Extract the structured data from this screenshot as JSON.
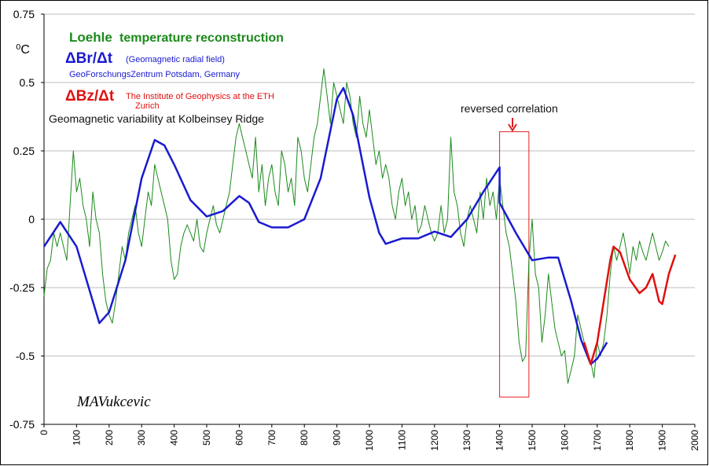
{
  "chart_data": {
    "type": "line",
    "unit_label": "⁰C",
    "legend_notes": {
      "loehle": "temperature reconstruction",
      "br_desc": "(Geomagnetic radial field)",
      "br_source": "GeoForschungsZentrum Potsdam, Germany",
      "bz_source_1": "The Institute of Geophysics at the ETH",
      "bz_source_2": "Zurich",
      "site": "Geomagnetic variability at Kolbeinsey Ridge"
    },
    "annotation": "reversed correlation",
    "signature": "MAVukcevic",
    "highlight": {
      "xlim": [
        1400,
        1490
      ],
      "ylim": [
        -0.65,
        0.32
      ],
      "color": "#e02020"
    },
    "xlim": [
      0,
      2000
    ],
    "ylim": [
      -0.75,
      0.75
    ],
    "xticks": [
      0,
      100,
      200,
      300,
      400,
      500,
      600,
      700,
      800,
      900,
      1000,
      1100,
      1200,
      1300,
      1400,
      1500,
      1600,
      1700,
      1800,
      1900,
      2000
    ],
    "yticks": [
      0.75,
      0.5,
      0.25,
      0,
      -0.25,
      -0.5,
      -0.75
    ],
    "grid": true,
    "series": [
      {
        "name": "Loehle",
        "color": "#1a8a1a",
        "width": 1,
        "x": [
          0,
          10,
          20,
          30,
          40,
          50,
          60,
          70,
          80,
          90,
          100,
          110,
          120,
          130,
          140,
          150,
          160,
          170,
          180,
          190,
          200,
          210,
          220,
          230,
          240,
          250,
          260,
          270,
          280,
          290,
          300,
          310,
          320,
          330,
          340,
          350,
          360,
          370,
          380,
          390,
          400,
          410,
          420,
          430,
          440,
          450,
          460,
          470,
          480,
          490,
          500,
          510,
          520,
          530,
          540,
          550,
          560,
          570,
          580,
          590,
          600,
          610,
          620,
          630,
          640,
          650,
          660,
          670,
          680,
          690,
          700,
          710,
          720,
          730,
          740,
          750,
          760,
          770,
          780,
          790,
          800,
          810,
          820,
          830,
          840,
          850,
          860,
          870,
          880,
          890,
          900,
          910,
          920,
          930,
          940,
          950,
          960,
          970,
          980,
          990,
          1000,
          1010,
          1020,
          1030,
          1040,
          1050,
          1060,
          1070,
          1080,
          1090,
          1100,
          1110,
          1120,
          1130,
          1140,
          1150,
          1160,
          1170,
          1180,
          1190,
          1200,
          1210,
          1220,
          1230,
          1240,
          1250,
          1260,
          1270,
          1280,
          1290,
          1300,
          1310,
          1320,
          1330,
          1340,
          1350,
          1360,
          1370,
          1380,
          1390,
          1400,
          1410,
          1420,
          1430,
          1440,
          1450,
          1460,
          1470,
          1480,
          1490,
          1500,
          1510,
          1520,
          1530,
          1540,
          1550,
          1560,
          1570,
          1580,
          1590,
          1600,
          1610,
          1620,
          1630,
          1640,
          1650,
          1660,
          1670,
          1680,
          1690,
          1700,
          1710,
          1720,
          1730,
          1740,
          1750,
          1760,
          1770,
          1780,
          1790,
          1800,
          1810,
          1820,
          1830,
          1840,
          1850,
          1860,
          1870,
          1880,
          1890,
          1900,
          1910,
          1920
        ],
        "values": [
          -0.28,
          -0.18,
          -0.15,
          -0.05,
          -0.1,
          -0.05,
          -0.1,
          -0.15,
          0.05,
          0.25,
          0.1,
          0.15,
          0.05,
          0.0,
          -0.1,
          0.1,
          0.0,
          -0.05,
          -0.2,
          -0.3,
          -0.35,
          -0.38,
          -0.3,
          -0.2,
          -0.1,
          -0.15,
          -0.05,
          0.0,
          0.05,
          -0.05,
          -0.1,
          0.0,
          0.1,
          0.05,
          0.2,
          0.15,
          0.1,
          0.05,
          0.0,
          -0.15,
          -0.22,
          -0.2,
          -0.1,
          -0.05,
          -0.02,
          -0.05,
          -0.08,
          0.0,
          -0.1,
          -0.12,
          -0.05,
          0.0,
          0.05,
          -0.02,
          -0.05,
          0.0,
          0.05,
          0.1,
          0.2,
          0.3,
          0.35,
          0.3,
          0.25,
          0.2,
          0.15,
          0.3,
          0.1,
          0.2,
          0.05,
          0.15,
          0.2,
          0.1,
          0.05,
          0.25,
          0.2,
          0.1,
          0.15,
          0.05,
          0.3,
          0.25,
          0.15,
          0.1,
          0.2,
          0.3,
          0.35,
          0.45,
          0.55,
          0.45,
          0.35,
          0.5,
          0.45,
          0.4,
          0.35,
          0.5,
          0.45,
          0.35,
          0.3,
          0.45,
          0.35,
          0.3,
          0.4,
          0.3,
          0.2,
          0.25,
          0.15,
          0.2,
          0.15,
          0.05,
          0.0,
          0.1,
          0.15,
          0.05,
          0.1,
          0.0,
          0.05,
          -0.05,
          -0.02,
          0.05,
          0.0,
          -0.05,
          -0.08,
          -0.05,
          0.05,
          -0.05,
          0.0,
          0.3,
          0.1,
          0.05,
          -0.05,
          -0.1,
          0.0,
          0.05,
          0.0,
          -0.05,
          0.1,
          0.0,
          0.15,
          0.05,
          0.1,
          0.0,
          0.15,
          0.05,
          -0.05,
          -0.1,
          -0.2,
          -0.3,
          -0.45,
          -0.52,
          -0.5,
          -0.15,
          0.0,
          -0.2,
          -0.25,
          -0.45,
          -0.35,
          -0.2,
          -0.3,
          -0.4,
          -0.45,
          -0.5,
          -0.48,
          -0.6,
          -0.55,
          -0.5,
          -0.35,
          -0.4,
          -0.45,
          -0.5,
          -0.52,
          -0.58,
          -0.45,
          -0.5,
          -0.45,
          -0.35,
          -0.2,
          -0.1,
          -0.15,
          -0.1,
          -0.05,
          -0.12,
          -0.2,
          -0.1,
          -0.15,
          -0.08,
          -0.12,
          -0.15,
          -0.1,
          -0.05,
          -0.1,
          -0.15,
          -0.12,
          -0.08,
          -0.1
        ]
      },
      {
        "name": "ΔBr/Δt",
        "color": "#1a1ad0",
        "width": 2.5,
        "x": [
          0,
          50,
          100,
          150,
          170,
          200,
          250,
          300,
          340,
          370,
          400,
          450,
          500,
          550,
          600,
          630,
          660,
          700,
          750,
          800,
          850,
          900,
          920,
          950,
          1000,
          1030,
          1050,
          1100,
          1150,
          1200,
          1250,
          1300,
          1350,
          1400,
          1400,
          1450,
          1500,
          1550,
          1580,
          1620,
          1650,
          1680,
          1700,
          1730
        ],
        "values": [
          -0.1,
          -0.01,
          -0.1,
          -0.3,
          -0.38,
          -0.34,
          -0.15,
          0.15,
          0.29,
          0.27,
          0.2,
          0.07,
          0.01,
          0.03,
          0.085,
          0.06,
          -0.01,
          -0.03,
          -0.03,
          0.0,
          0.15,
          0.44,
          0.48,
          0.38,
          0.08,
          -0.05,
          -0.09,
          -0.07,
          -0.07,
          -0.045,
          -0.065,
          0.0,
          0.1,
          0.19,
          0.06,
          -0.05,
          -0.15,
          -0.14,
          -0.14,
          -0.3,
          -0.44,
          -0.53,
          -0.51,
          -0.45
        ]
      },
      {
        "name": "ΔBz/Δt",
        "color": "#e01010",
        "width": 2.5,
        "x": [
          1660,
          1680,
          1700,
          1720,
          1740,
          1750,
          1770,
          1800,
          1830,
          1850,
          1870,
          1890,
          1900,
          1920,
          1940
        ],
        "values": [
          -0.45,
          -0.53,
          -0.45,
          -0.3,
          -0.15,
          -0.1,
          -0.12,
          -0.22,
          -0.27,
          -0.25,
          -0.2,
          -0.3,
          -0.31,
          -0.2,
          -0.13
        ]
      }
    ]
  }
}
